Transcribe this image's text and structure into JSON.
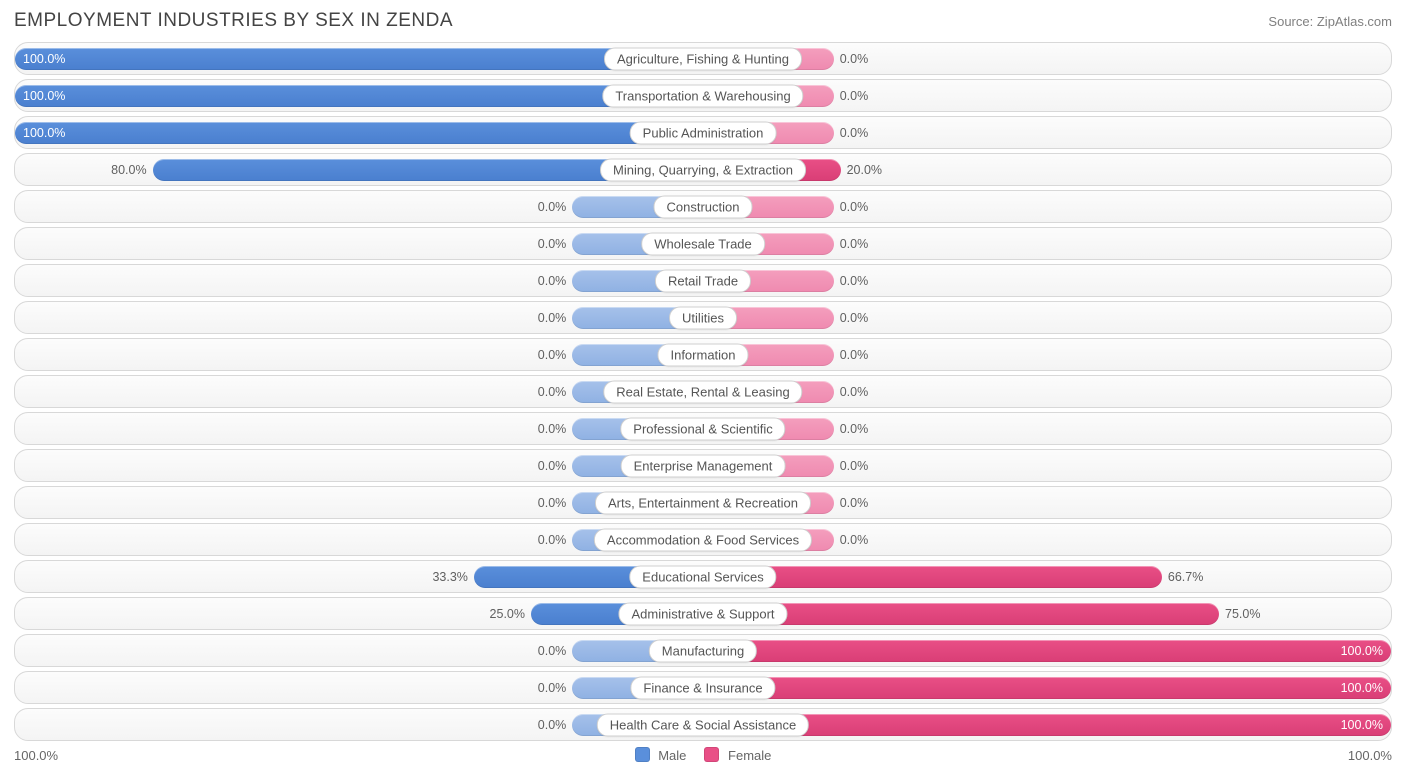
{
  "title": "EMPLOYMENT INDUSTRIES BY SEX IN ZENDA",
  "source_label": "Source:",
  "source_name": "ZipAtlas.com",
  "chart": {
    "type": "diverging-bar",
    "axis_left_label": "100.0%",
    "axis_right_label": "100.0%",
    "legend": {
      "male": "Male",
      "female": "Female"
    },
    "colors": {
      "male_strong": "#5a8fdb",
      "male_weak": "#a6c1ea",
      "female_strong": "#e94f86",
      "female_weak": "#f49ebd",
      "row_border": "#d8d8d8",
      "row_bg_top": "#fcfcfc",
      "row_bg_bot": "#f4f4f4",
      "text": "#606060",
      "title_text": "#444444",
      "label_bg": "#ffffff",
      "label_border": "#cfcfcf"
    },
    "min_bar_pct": 19,
    "rows": [
      {
        "label": "Agriculture, Fishing & Hunting",
        "male": 100.0,
        "female": 0.0,
        "male_label": "100.0%",
        "female_label": "0.0%"
      },
      {
        "label": "Transportation & Warehousing",
        "male": 100.0,
        "female": 0.0,
        "male_label": "100.0%",
        "female_label": "0.0%"
      },
      {
        "label": "Public Administration",
        "male": 100.0,
        "female": 0.0,
        "male_label": "100.0%",
        "female_label": "0.0%"
      },
      {
        "label": "Mining, Quarrying, & Extraction",
        "male": 80.0,
        "female": 20.0,
        "male_label": "80.0%",
        "female_label": "20.0%"
      },
      {
        "label": "Construction",
        "male": 0.0,
        "female": 0.0,
        "male_label": "0.0%",
        "female_label": "0.0%"
      },
      {
        "label": "Wholesale Trade",
        "male": 0.0,
        "female": 0.0,
        "male_label": "0.0%",
        "female_label": "0.0%"
      },
      {
        "label": "Retail Trade",
        "male": 0.0,
        "female": 0.0,
        "male_label": "0.0%",
        "female_label": "0.0%"
      },
      {
        "label": "Utilities",
        "male": 0.0,
        "female": 0.0,
        "male_label": "0.0%",
        "female_label": "0.0%"
      },
      {
        "label": "Information",
        "male": 0.0,
        "female": 0.0,
        "male_label": "0.0%",
        "female_label": "0.0%"
      },
      {
        "label": "Real Estate, Rental & Leasing",
        "male": 0.0,
        "female": 0.0,
        "male_label": "0.0%",
        "female_label": "0.0%"
      },
      {
        "label": "Professional & Scientific",
        "male": 0.0,
        "female": 0.0,
        "male_label": "0.0%",
        "female_label": "0.0%"
      },
      {
        "label": "Enterprise Management",
        "male": 0.0,
        "female": 0.0,
        "male_label": "0.0%",
        "female_label": "0.0%"
      },
      {
        "label": "Arts, Entertainment & Recreation",
        "male": 0.0,
        "female": 0.0,
        "male_label": "0.0%",
        "female_label": "0.0%"
      },
      {
        "label": "Accommodation & Food Services",
        "male": 0.0,
        "female": 0.0,
        "male_label": "0.0%",
        "female_label": "0.0%"
      },
      {
        "label": "Educational Services",
        "male": 33.3,
        "female": 66.7,
        "male_label": "33.3%",
        "female_label": "66.7%"
      },
      {
        "label": "Administrative & Support",
        "male": 25.0,
        "female": 75.0,
        "male_label": "25.0%",
        "female_label": "75.0%"
      },
      {
        "label": "Manufacturing",
        "male": 0.0,
        "female": 100.0,
        "male_label": "0.0%",
        "female_label": "100.0%"
      },
      {
        "label": "Finance & Insurance",
        "male": 0.0,
        "female": 100.0,
        "male_label": "0.0%",
        "female_label": "100.0%"
      },
      {
        "label": "Health Care & Social Assistance",
        "male": 0.0,
        "female": 100.0,
        "male_label": "0.0%",
        "female_label": "100.0%"
      }
    ]
  }
}
